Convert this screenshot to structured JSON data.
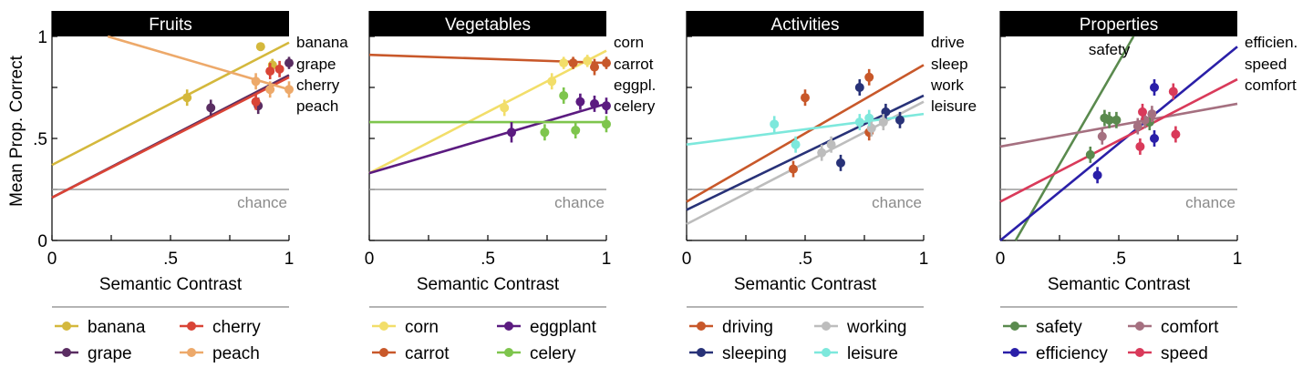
{
  "figure": {
    "ylabel": "Mean Prop. Correct"
  },
  "chart_data": [
    {
      "type": "scatter",
      "title": "Fruits",
      "xlabel": "Semantic Contrast",
      "xlim": [
        0,
        1
      ],
      "ylim": [
        0,
        1.05
      ],
      "xticks": [
        0,
        0.25,
        0.5,
        0.75,
        1
      ],
      "xtick_labels": [
        "0",
        "",
        ".5",
        "",
        "1"
      ],
      "yticks": [
        0,
        0.25,
        0.5,
        0.75,
        1
      ],
      "ytick_labels": [
        "0",
        "",
        ".5",
        "",
        "1"
      ],
      "chance": 0.25,
      "chance_label": "chance",
      "series": [
        {
          "name": "banana",
          "label": "banana",
          "color": "#d4b83c",
          "fit": [
            0.37,
            0.97
          ],
          "points": [
            {
              "x": 0.57,
              "y": 0.7,
              "e": 0.04
            },
            {
              "x": 0.88,
              "y": 0.95,
              "e": 0.02
            },
            {
              "x": 0.93,
              "y": 0.86,
              "e": 0.03
            }
          ]
        },
        {
          "name": "grape",
          "label": "grape",
          "color": "#5a2d62",
          "fit": [
            0.21,
            0.81
          ],
          "points": [
            {
              "x": 0.67,
              "y": 0.65,
              "e": 0.04
            },
            {
              "x": 0.87,
              "y": 0.66,
              "e": 0.04
            },
            {
              "x": 1.0,
              "y": 0.87,
              "e": 0.03
            }
          ]
        },
        {
          "name": "cherry",
          "label": "cherry",
          "color": "#d94436",
          "fit": [
            0.21,
            0.8
          ],
          "points": [
            {
              "x": 0.86,
              "y": 0.68,
              "e": 0.04
            },
            {
              "x": 0.92,
              "y": 0.83,
              "e": 0.04
            },
            {
              "x": 0.96,
              "y": 0.84,
              "e": 0.04
            }
          ]
        },
        {
          "name": "peach",
          "label": "peach",
          "color": "#eda96a",
          "fit": [
            1.08,
            0.74
          ],
          "points": [
            {
              "x": 0.86,
              "y": 0.78,
              "e": 0.04
            },
            {
              "x": 0.92,
              "y": 0.74,
              "e": 0.04
            },
            {
              "x": 1.0,
              "y": 0.74,
              "e": 0.04
            }
          ]
        }
      ],
      "line_labels": [
        "banana",
        "grape",
        "cherry",
        "peach"
      ],
      "legend": [
        [
          "banana",
          "cherry"
        ],
        [
          "grape",
          "peach"
        ]
      ]
    },
    {
      "type": "scatter",
      "title": "Vegetables",
      "xlabel": "Semantic Contrast",
      "xlim": [
        0,
        1
      ],
      "ylim": [
        0,
        1.05
      ],
      "xticks": [
        0,
        0.25,
        0.5,
        0.75,
        1
      ],
      "xtick_labels": [
        "0",
        "",
        ".5",
        "",
        "1"
      ],
      "yticks": [
        0,
        0.25,
        0.5,
        0.75,
        1
      ],
      "ytick_labels": [
        "",
        "",
        "",
        "",
        ""
      ],
      "chance": 0.25,
      "chance_label": "chance",
      "series": [
        {
          "name": "corn",
          "label": "corn",
          "color": "#f2de6a",
          "fit": [
            0.33,
            0.93
          ],
          "points": [
            {
              "x": 0.57,
              "y": 0.65,
              "e": 0.04
            },
            {
              "x": 0.77,
              "y": 0.78,
              "e": 0.04
            },
            {
              "x": 0.82,
              "y": 0.87,
              "e": 0.03
            },
            {
              "x": 0.92,
              "y": 0.88,
              "e": 0.03
            }
          ]
        },
        {
          "name": "carrot",
          "label": "carrot",
          "color": "#c8582a",
          "fit": [
            0.91,
            0.87
          ],
          "points": [
            {
              "x": 0.86,
              "y": 0.87,
              "e": 0.03
            },
            {
              "x": 0.95,
              "y": 0.85,
              "e": 0.04
            },
            {
              "x": 1.0,
              "y": 0.87,
              "e": 0.03
            }
          ]
        },
        {
          "name": "eggplant",
          "label": "eggpl.",
          "color": "#5b1b80",
          "fit": [
            0.33,
            0.67
          ],
          "points": [
            {
              "x": 0.6,
              "y": 0.53,
              "e": 0.05
            },
            {
              "x": 0.89,
              "y": 0.68,
              "e": 0.04
            },
            {
              "x": 0.95,
              "y": 0.67,
              "e": 0.04
            },
            {
              "x": 1.0,
              "y": 0.66,
              "e": 0.04
            }
          ]
        },
        {
          "name": "celery",
          "label": "celery",
          "color": "#7ec54d",
          "fit": [
            0.58,
            0.58
          ],
          "points": [
            {
              "x": 0.74,
              "y": 0.53,
              "e": 0.04
            },
            {
              "x": 0.82,
              "y": 0.71,
              "e": 0.04
            },
            {
              "x": 0.87,
              "y": 0.54,
              "e": 0.04
            },
            {
              "x": 1.0,
              "y": 0.57,
              "e": 0.04
            }
          ]
        }
      ],
      "line_labels": [
        "corn",
        "carrot",
        "eggpl.",
        "celery"
      ],
      "legend": [
        [
          "corn",
          "eggplant"
        ],
        [
          "carrot",
          "celery"
        ]
      ]
    },
    {
      "type": "scatter",
      "title": "Activities",
      "xlabel": "Semantic Contrast",
      "xlim": [
        0,
        1
      ],
      "ylim": [
        0,
        1.05
      ],
      "xticks": [
        0,
        0.25,
        0.5,
        0.75,
        1
      ],
      "xtick_labels": [
        "0",
        "",
        ".5",
        "",
        "1"
      ],
      "yticks": [
        0,
        0.25,
        0.5,
        0.75,
        1
      ],
      "ytick_labels": [
        "",
        "",
        "",
        "",
        ""
      ],
      "chance": 0.25,
      "chance_label": "chance",
      "series": [
        {
          "name": "driving",
          "label": "drive",
          "color": "#c8582a",
          "fit": [
            0.19,
            0.86
          ],
          "points": [
            {
              "x": 0.45,
              "y": 0.35,
              "e": 0.04
            },
            {
              "x": 0.5,
              "y": 0.7,
              "e": 0.04
            },
            {
              "x": 0.77,
              "y": 0.53,
              "e": 0.04
            },
            {
              "x": 0.77,
              "y": 0.8,
              "e": 0.04
            }
          ]
        },
        {
          "name": "sleeping",
          "label": "sleep",
          "color": "#283278",
          "fit": [
            0.15,
            0.71
          ],
          "points": [
            {
              "x": 0.65,
              "y": 0.38,
              "e": 0.04
            },
            {
              "x": 0.73,
              "y": 0.75,
              "e": 0.04
            },
            {
              "x": 0.84,
              "y": 0.63,
              "e": 0.04
            },
            {
              "x": 0.9,
              "y": 0.59,
              "e": 0.04
            }
          ]
        },
        {
          "name": "working",
          "label": "work",
          "color": "#bdbdbd",
          "fit": [
            0.08,
            0.68
          ],
          "points": [
            {
              "x": 0.57,
              "y": 0.43,
              "e": 0.04
            },
            {
              "x": 0.61,
              "y": 0.47,
              "e": 0.04
            },
            {
              "x": 0.78,
              "y": 0.55,
              "e": 0.04
            },
            {
              "x": 0.83,
              "y": 0.58,
              "e": 0.04
            }
          ]
        },
        {
          "name": "leisure",
          "label": "leisure",
          "color": "#7de8dc",
          "fit": [
            0.47,
            0.62
          ],
          "points": [
            {
              "x": 0.37,
              "y": 0.57,
              "e": 0.04
            },
            {
              "x": 0.46,
              "y": 0.47,
              "e": 0.04
            },
            {
              "x": 0.73,
              "y": 0.58,
              "e": 0.04
            },
            {
              "x": 0.77,
              "y": 0.6,
              "e": 0.04
            }
          ]
        }
      ],
      "line_labels": [
        "drive",
        "sleep",
        "work",
        "leisure"
      ],
      "legend": [
        [
          "driving",
          "working"
        ],
        [
          "sleeping",
          "leisure"
        ]
      ]
    },
    {
      "type": "scatter",
      "title": "Properties",
      "xlabel": "Semantic Contrast",
      "xlim": [
        0,
        1
      ],
      "ylim": [
        0,
        1.05
      ],
      "xticks": [
        0,
        0.25,
        0.5,
        0.75,
        1
      ],
      "xtick_labels": [
        "0",
        "",
        ".5",
        "",
        "1"
      ],
      "yticks": [
        0,
        0.25,
        0.5,
        0.75,
        1
      ],
      "ytick_labels": [
        "",
        "",
        "",
        "",
        ""
      ],
      "chance": 0.25,
      "chance_label": "chance",
      "series": [
        {
          "name": "safety",
          "label": "safety",
          "color": "#5a8a4e",
          "fit": [
            -0.13,
            1.88
          ],
          "points": [
            {
              "x": 0.38,
              "y": 0.42,
              "e": 0.04
            },
            {
              "x": 0.44,
              "y": 0.6,
              "e": 0.04
            },
            {
              "x": 0.46,
              "y": 0.59,
              "e": 0.04
            },
            {
              "x": 0.49,
              "y": 0.59,
              "e": 0.04
            },
            {
              "x": 0.63,
              "y": 0.58,
              "e": 0.04
            }
          ]
        },
        {
          "name": "efficiency",
          "label": "efficien.",
          "color": "#2a1fa8",
          "fit": [
            0.0,
            0.95
          ],
          "points": [
            {
              "x": 0.41,
              "y": 0.32,
              "e": 0.04
            },
            {
              "x": 0.65,
              "y": 0.75,
              "e": 0.04
            },
            {
              "x": 0.65,
              "y": 0.5,
              "e": 0.04
            }
          ]
        },
        {
          "name": "comfort",
          "label": "comfort",
          "color": "#a57080",
          "fit": [
            0.46,
            0.67
          ],
          "points": [
            {
              "x": 0.43,
              "y": 0.51,
              "e": 0.04
            },
            {
              "x": 0.58,
              "y": 0.56,
              "e": 0.04
            },
            {
              "x": 0.61,
              "y": 0.59,
              "e": 0.04
            },
            {
              "x": 0.64,
              "y": 0.62,
              "e": 0.04
            }
          ]
        },
        {
          "name": "speed",
          "label": "speed",
          "color": "#d93a5a",
          "fit": [
            0.19,
            0.79
          ],
          "points": [
            {
              "x": 0.59,
              "y": 0.46,
              "e": 0.04
            },
            {
              "x": 0.6,
              "y": 0.63,
              "e": 0.04
            },
            {
              "x": 0.73,
              "y": 0.73,
              "e": 0.04
            },
            {
              "x": 0.74,
              "y": 0.52,
              "e": 0.04
            }
          ]
        }
      ],
      "line_labels": [
        "efficien.",
        "speed",
        "comfort"
      ],
      "annotation": {
        "text": "safety",
        "x": 0.46,
        "y": 0.91
      },
      "legend": [
        [
          "safety",
          "comfort"
        ],
        [
          "efficiency",
          "speed"
        ]
      ]
    }
  ]
}
